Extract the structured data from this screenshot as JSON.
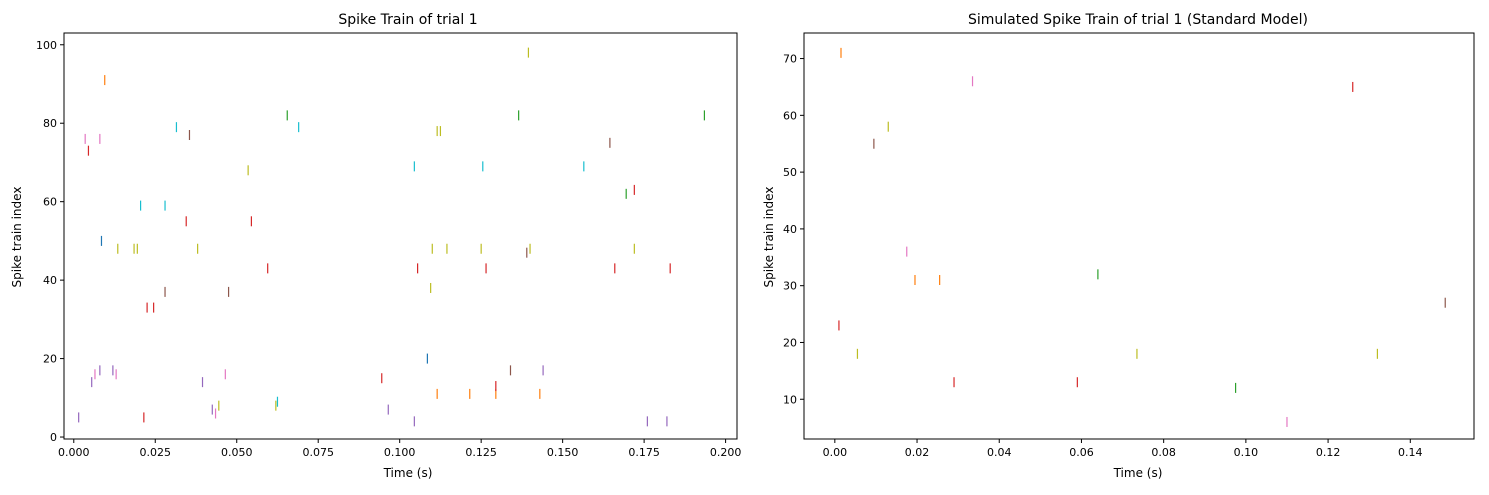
{
  "chart_data": [
    {
      "type": "scatter",
      "marker": "vertical-tick",
      "title": "Spike Train of trial 1",
      "xlabel": "Time (s)",
      "ylabel": "Spike train index",
      "xlim": [
        -0.003,
        0.2035
      ],
      "ylim": [
        -0.5,
        103
      ],
      "xticks": [
        0.0,
        0.025,
        0.05,
        0.075,
        0.1,
        0.125,
        0.15,
        0.175,
        0.2
      ],
      "xtick_labels": [
        "0.000",
        "0.025",
        "0.050",
        "0.075",
        "0.100",
        "0.125",
        "0.150",
        "0.175",
        "0.200"
      ],
      "yticks": [
        0,
        20,
        40,
        60,
        80,
        100
      ],
      "ytick_labels": [
        "0",
        "20",
        "40",
        "60",
        "80",
        "100"
      ],
      "grid": false,
      "spikes": [
        {
          "x": 0.0015,
          "y": 5,
          "color": "#9467bd"
        },
        {
          "x": 0.0035,
          "y": 76,
          "color": "#e377c2"
        },
        {
          "x": 0.0045,
          "y": 73,
          "color": "#d62728"
        },
        {
          "x": 0.0055,
          "y": 14,
          "color": "#9467bd"
        },
        {
          "x": 0.0065,
          "y": 16,
          "color": "#e377c2"
        },
        {
          "x": 0.008,
          "y": 17,
          "color": "#9467bd"
        },
        {
          "x": 0.008,
          "y": 76,
          "color": "#e377c2"
        },
        {
          "x": 0.0085,
          "y": 50,
          "color": "#1f77b4"
        },
        {
          "x": 0.0095,
          "y": 91,
          "color": "#ff7f0e"
        },
        {
          "x": 0.012,
          "y": 17,
          "color": "#9467bd"
        },
        {
          "x": 0.013,
          "y": 16,
          "color": "#e377c2"
        },
        {
          "x": 0.0135,
          "y": 48,
          "color": "#bcbd22"
        },
        {
          "x": 0.0185,
          "y": 48,
          "color": "#bcbd22"
        },
        {
          "x": 0.0195,
          "y": 48,
          "color": "#bcbd22"
        },
        {
          "x": 0.0205,
          "y": 59,
          "color": "#17becf"
        },
        {
          "x": 0.0215,
          "y": 5,
          "color": "#d62728"
        },
        {
          "x": 0.0225,
          "y": 33,
          "color": "#d62728"
        },
        {
          "x": 0.0245,
          "y": 33,
          "color": "#d62728"
        },
        {
          "x": 0.028,
          "y": 37,
          "color": "#8c564b"
        },
        {
          "x": 0.028,
          "y": 59,
          "color": "#17becf"
        },
        {
          "x": 0.0315,
          "y": 79,
          "color": "#17becf"
        },
        {
          "x": 0.0345,
          "y": 55,
          "color": "#d62728"
        },
        {
          "x": 0.0355,
          "y": 77,
          "color": "#8c564b"
        },
        {
          "x": 0.038,
          "y": 48,
          "color": "#bcbd22"
        },
        {
          "x": 0.0395,
          "y": 14,
          "color": "#9467bd"
        },
        {
          "x": 0.0425,
          "y": 7,
          "color": "#9467bd"
        },
        {
          "x": 0.0435,
          "y": 6,
          "color": "#e377c2"
        },
        {
          "x": 0.0445,
          "y": 8,
          "color": "#bcbd22"
        },
        {
          "x": 0.0465,
          "y": 16,
          "color": "#e377c2"
        },
        {
          "x": 0.0475,
          "y": 37,
          "color": "#8c564b"
        },
        {
          "x": 0.0535,
          "y": 68,
          "color": "#bcbd22"
        },
        {
          "x": 0.0545,
          "y": 55,
          "color": "#d62728"
        },
        {
          "x": 0.0595,
          "y": 43,
          "color": "#d62728"
        },
        {
          "x": 0.062,
          "y": 8,
          "color": "#bcbd22"
        },
        {
          "x": 0.0625,
          "y": 9,
          "color": "#17becf"
        },
        {
          "x": 0.0655,
          "y": 82,
          "color": "#2ca02c"
        },
        {
          "x": 0.069,
          "y": 79,
          "color": "#17becf"
        },
        {
          "x": 0.0945,
          "y": 15,
          "color": "#d62728"
        },
        {
          "x": 0.0965,
          "y": 7,
          "color": "#9467bd"
        },
        {
          "x": 0.1045,
          "y": 4,
          "color": "#9467bd"
        },
        {
          "x": 0.1045,
          "y": 69,
          "color": "#17becf"
        },
        {
          "x": 0.1055,
          "y": 43,
          "color": "#d62728"
        },
        {
          "x": 0.1085,
          "y": 20,
          "color": "#1f77b4"
        },
        {
          "x": 0.1095,
          "y": 38,
          "color": "#bcbd22"
        },
        {
          "x": 0.11,
          "y": 48,
          "color": "#bcbd22"
        },
        {
          "x": 0.1115,
          "y": 11,
          "color": "#ff7f0e"
        },
        {
          "x": 0.1115,
          "y": 78,
          "color": "#bcbd22"
        },
        {
          "x": 0.1125,
          "y": 78,
          "color": "#bcbd22"
        },
        {
          "x": 0.1145,
          "y": 48,
          "color": "#bcbd22"
        },
        {
          "x": 0.1215,
          "y": 11,
          "color": "#ff7f0e"
        },
        {
          "x": 0.125,
          "y": 48,
          "color": "#bcbd22"
        },
        {
          "x": 0.1255,
          "y": 69,
          "color": "#17becf"
        },
        {
          "x": 0.1265,
          "y": 43,
          "color": "#d62728"
        },
        {
          "x": 0.1295,
          "y": 11,
          "color": "#ff7f0e"
        },
        {
          "x": 0.1295,
          "y": 13,
          "color": "#d62728"
        },
        {
          "x": 0.134,
          "y": 17,
          "color": "#8c564b"
        },
        {
          "x": 0.1365,
          "y": 82,
          "color": "#2ca02c"
        },
        {
          "x": 0.139,
          "y": 47,
          "color": "#8c564b"
        },
        {
          "x": 0.1395,
          "y": 98,
          "color": "#bcbd22"
        },
        {
          "x": 0.14,
          "y": 48,
          "color": "#bcbd22"
        },
        {
          "x": 0.143,
          "y": 11,
          "color": "#ff7f0e"
        },
        {
          "x": 0.144,
          "y": 17,
          "color": "#9467bd"
        },
        {
          "x": 0.1565,
          "y": 69,
          "color": "#17becf"
        },
        {
          "x": 0.1645,
          "y": 75,
          "color": "#8c564b"
        },
        {
          "x": 0.166,
          "y": 43,
          "color": "#d62728"
        },
        {
          "x": 0.1695,
          "y": 62,
          "color": "#2ca02c"
        },
        {
          "x": 0.172,
          "y": 48,
          "color": "#bcbd22"
        },
        {
          "x": 0.172,
          "y": 63,
          "color": "#d62728"
        },
        {
          "x": 0.176,
          "y": 4,
          "color": "#9467bd"
        },
        {
          "x": 0.182,
          "y": 4,
          "color": "#9467bd"
        },
        {
          "x": 0.183,
          "y": 43,
          "color": "#d62728"
        },
        {
          "x": 0.1935,
          "y": 82,
          "color": "#2ca02c"
        }
      ]
    },
    {
      "type": "scatter",
      "marker": "vertical-tick",
      "title": "Simulated Spike Train of trial 1 (Standard Model)",
      "xlabel": "Time (s)",
      "ylabel": "Spike train index",
      "xlim": [
        -0.0075,
        0.1555
      ],
      "ylim": [
        3,
        74.5
      ],
      "xticks": [
        0.0,
        0.02,
        0.04,
        0.06,
        0.08,
        0.1,
        0.12,
        0.14
      ],
      "xtick_labels": [
        "0.00",
        "0.02",
        "0.04",
        "0.06",
        "0.08",
        "0.10",
        "0.12",
        "0.14"
      ],
      "yticks": [
        10,
        20,
        30,
        40,
        50,
        60,
        70
      ],
      "ytick_labels": [
        "10",
        "20",
        "30",
        "40",
        "50",
        "60",
        "70"
      ],
      "grid": false,
      "spikes": [
        {
          "x": 0.001,
          "y": 23,
          "color": "#d62728"
        },
        {
          "x": 0.0015,
          "y": 71,
          "color": "#ff7f0e"
        },
        {
          "x": 0.0055,
          "y": 18,
          "color": "#bcbd22"
        },
        {
          "x": 0.0095,
          "y": 55,
          "color": "#8c564b"
        },
        {
          "x": 0.013,
          "y": 58,
          "color": "#bcbd22"
        },
        {
          "x": 0.0175,
          "y": 36,
          "color": "#e377c2"
        },
        {
          "x": 0.0195,
          "y": 31,
          "color": "#ff7f0e"
        },
        {
          "x": 0.0255,
          "y": 31,
          "color": "#ff7f0e"
        },
        {
          "x": 0.029,
          "y": 13,
          "color": "#d62728"
        },
        {
          "x": 0.0335,
          "y": 66,
          "color": "#e377c2"
        },
        {
          "x": 0.059,
          "y": 13,
          "color": "#d62728"
        },
        {
          "x": 0.064,
          "y": 32,
          "color": "#2ca02c"
        },
        {
          "x": 0.0735,
          "y": 18,
          "color": "#bcbd22"
        },
        {
          "x": 0.0975,
          "y": 12,
          "color": "#2ca02c"
        },
        {
          "x": 0.11,
          "y": 6,
          "color": "#e377c2"
        },
        {
          "x": 0.126,
          "y": 65,
          "color": "#d62728"
        },
        {
          "x": 0.132,
          "y": 18,
          "color": "#bcbd22"
        },
        {
          "x": 0.1485,
          "y": 27,
          "color": "#8c564b"
        }
      ]
    }
  ]
}
